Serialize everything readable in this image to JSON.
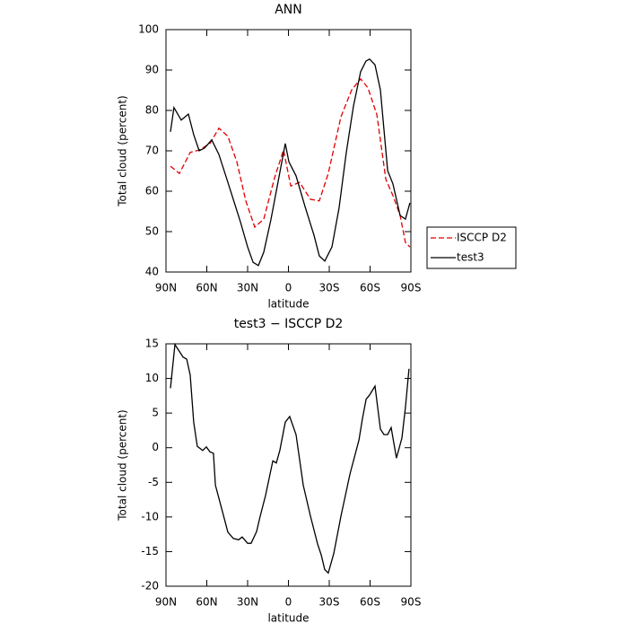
{
  "chart_data": [
    {
      "type": "line",
      "title": "ANN",
      "xlabel": "latitude",
      "ylabel": "Total cloud (percent)",
      "xlim": [
        90,
        -90
      ],
      "xticks": [
        {
          "value": 90,
          "label": "90N"
        },
        {
          "value": 60,
          "label": "60N"
        },
        {
          "value": 30,
          "label": "30N"
        },
        0,
        {
          "value": -30,
          "label": "30S"
        },
        {
          "value": -60,
          "label": "60S"
        },
        {
          "value": -90,
          "label": "90S"
        }
      ],
      "ylim": [
        40,
        100
      ],
      "yticks": [
        40,
        50,
        60,
        70,
        80,
        90,
        100
      ],
      "legend": "right",
      "series": [
        {
          "name": "ISCCP D2",
          "color": "#e00000",
          "dashed": true,
          "x": [
            86.7,
            80.1,
            72.2,
            65.6,
            57.7,
            51.1,
            44.5,
            37.9,
            31.3,
            24.7,
            18.1,
            10.2,
            3.6,
            -1.7,
            -8.2,
            -16.2,
            -22.7,
            -29.3,
            -38.6,
            -46.5,
            -53.1,
            -58.4,
            -65,
            -71.6,
            -76.8,
            -82.1,
            -86,
            -89.3
          ],
          "values": [
            66.2,
            64.4,
            69.6,
            70.2,
            71.8,
            75.6,
            73.6,
            67.3,
            57.6,
            51.1,
            53.1,
            63.3,
            70.2,
            61.3,
            62.2,
            58.0,
            57.6,
            64.4,
            78.4,
            85.1,
            87.8,
            85.6,
            78.9,
            62.9,
            58.9,
            54.0,
            47.3,
            46.2
          ]
        },
        {
          "name": "test3",
          "color": "#000000",
          "dashed": false,
          "x": [
            86.7,
            84.1,
            78.8,
            73.5,
            69.6,
            65.6,
            61.6,
            56.4,
            51.1,
            44.5,
            35.3,
            30.0,
            26.0,
            22.1,
            18.1,
            12.9,
            7.6,
            2.3,
            -0.3,
            -5.6,
            -12.2,
            -18.8,
            -22.7,
            -26.7,
            -32,
            -37.2,
            -42.5,
            -47.8,
            -53.1,
            -57,
            -59.6,
            -63.6,
            -67.6,
            -72.9,
            -76.8,
            -82.1,
            -86,
            -89.3
          ],
          "values": [
            74.7,
            80.7,
            77.6,
            79.1,
            74.0,
            70.0,
            70.7,
            72.7,
            69.1,
            62.2,
            52.4,
            46.2,
            42.4,
            41.6,
            44.9,
            52.9,
            62.4,
            71.8,
            67.3,
            63.8,
            56.2,
            49.1,
            44.0,
            42.7,
            46.2,
            55.8,
            69.6,
            81.1,
            89.6,
            92.2,
            92.7,
            91.3,
            85.1,
            65.1,
            61.8,
            54.0,
            53.1,
            57.1
          ]
        }
      ]
    },
    {
      "type": "line",
      "title": "test3 − ISCCP D2",
      "xlabel": "latitude",
      "ylabel": "Total cloud (percent)",
      "xlim": [
        90,
        -90
      ],
      "xticks": [
        {
          "value": 90,
          "label": "90N"
        },
        {
          "value": 60,
          "label": "60N"
        },
        {
          "value": 30,
          "label": "30N"
        },
        0,
        {
          "value": -30,
          "label": "30S"
        },
        {
          "value": -60,
          "label": "60S"
        },
        {
          "value": -90,
          "label": "90S"
        }
      ],
      "ylim": [
        -20,
        15
      ],
      "yticks": [
        -20,
        -15,
        -10,
        -5,
        0,
        5,
        10,
        15
      ],
      "series": [
        {
          "color": "#000000",
          "dashed": false,
          "x": [
            86.7,
            83.4,
            77.5,
            74.8,
            72.2,
            69.6,
            67,
            63,
            60.3,
            57.7,
            55.1,
            53.7,
            48.5,
            44.5,
            40.5,
            36.6,
            34,
            30,
            27.4,
            23.4,
            20.8,
            16.8,
            11.5,
            8.9,
            6.3,
            2.3,
            -0.9,
            -5.6,
            -10.9,
            -16.2,
            -21.4,
            -24.1,
            -26.7,
            -29.3,
            -33.3,
            -38.6,
            -45.2,
            -51.8,
            -54.4,
            -57.1,
            -59.6,
            -63.6,
            -67.6,
            -70.2,
            -72.9,
            -75.5,
            -79.4,
            -83.4,
            -86,
            -88.6
          ],
          "values": [
            8.6,
            14.9,
            13.1,
            12.8,
            10.5,
            3.7,
            0.2,
            -0.4,
            0.1,
            -0.6,
            -0.8,
            -5.4,
            -9.2,
            -12.2,
            -13.1,
            -13.3,
            -12.9,
            -13.8,
            -13.8,
            -12.1,
            -9.9,
            -6.9,
            -1.9,
            -2.2,
            -0.4,
            3.7,
            4.5,
            1.9,
            -5.4,
            -9.9,
            -13.9,
            -15.5,
            -17.6,
            -18.1,
            -15.3,
            -9.9,
            -3.8,
            1.1,
            4.2,
            7.0,
            7.6,
            8.9,
            2.7,
            1.9,
            1.9,
            2.9,
            -1.5,
            1.4,
            5.8,
            11.4
          ]
        }
      ]
    }
  ]
}
